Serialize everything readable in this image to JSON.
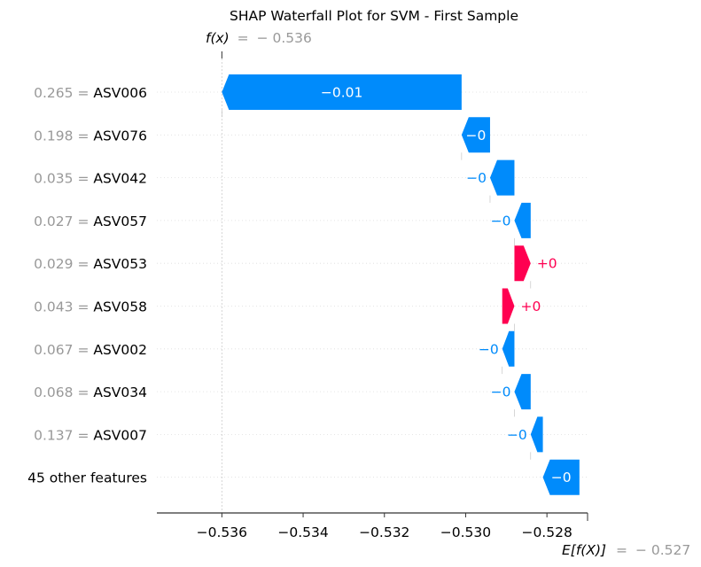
{
  "chart_data": {
    "type": "waterfall",
    "title": "SHAP Waterfall Plot for SVM - First Sample",
    "fx_label": {
      "name": "f(x)",
      "value": "− 0.536"
    },
    "efx_label": {
      "name": "E[f(X)]",
      "value": "− 0.527"
    },
    "fx": -0.536,
    "base_value": -0.527,
    "xlim": [
      -0.5376,
      -0.527
    ],
    "xticks": [
      -0.536,
      -0.534,
      -0.532,
      -0.53,
      -0.528
    ],
    "xtick_labels": [
      "−0.536",
      "−0.534",
      "−0.532",
      "−0.530",
      "−0.528"
    ],
    "features": [
      {
        "value": "0.265",
        "name": "ASV006",
        "start": -0.5301,
        "end": -0.536,
        "label": "−0.01"
      },
      {
        "value": "0.198",
        "name": "ASV076",
        "start": -0.5294,
        "end": -0.5301,
        "label": "−0"
      },
      {
        "value": "0.035",
        "name": "ASV042",
        "start": -0.5288,
        "end": -0.5294,
        "label": "−0"
      },
      {
        "value": "0.027",
        "name": "ASV057",
        "start": -0.5284,
        "end": -0.5288,
        "label": "−0"
      },
      {
        "value": "0.029",
        "name": "ASV053",
        "start": -0.5288,
        "end": -0.5284,
        "label": "+0"
      },
      {
        "value": "0.043",
        "name": "ASV058",
        "start": -0.5291,
        "end": -0.5288,
        "label": "+0"
      },
      {
        "value": "0.067",
        "name": "ASV002",
        "start": -0.5288,
        "end": -0.5291,
        "label": "−0"
      },
      {
        "value": "0.068",
        "name": "ASV034",
        "start": -0.5284,
        "end": -0.5288,
        "label": "−0"
      },
      {
        "value": "0.137",
        "name": "ASV007",
        "start": -0.5281,
        "end": -0.5284,
        "label": "−0"
      },
      {
        "value": "",
        "name": "45 other features",
        "start": -0.5272,
        "end": -0.5281,
        "label": "−0"
      }
    ],
    "colors": {
      "positive": "#ff0051",
      "negative": "#008bfb",
      "muted": "#999999",
      "axis": "#333333",
      "grid": "#cccccc"
    },
    "grid": true
  }
}
